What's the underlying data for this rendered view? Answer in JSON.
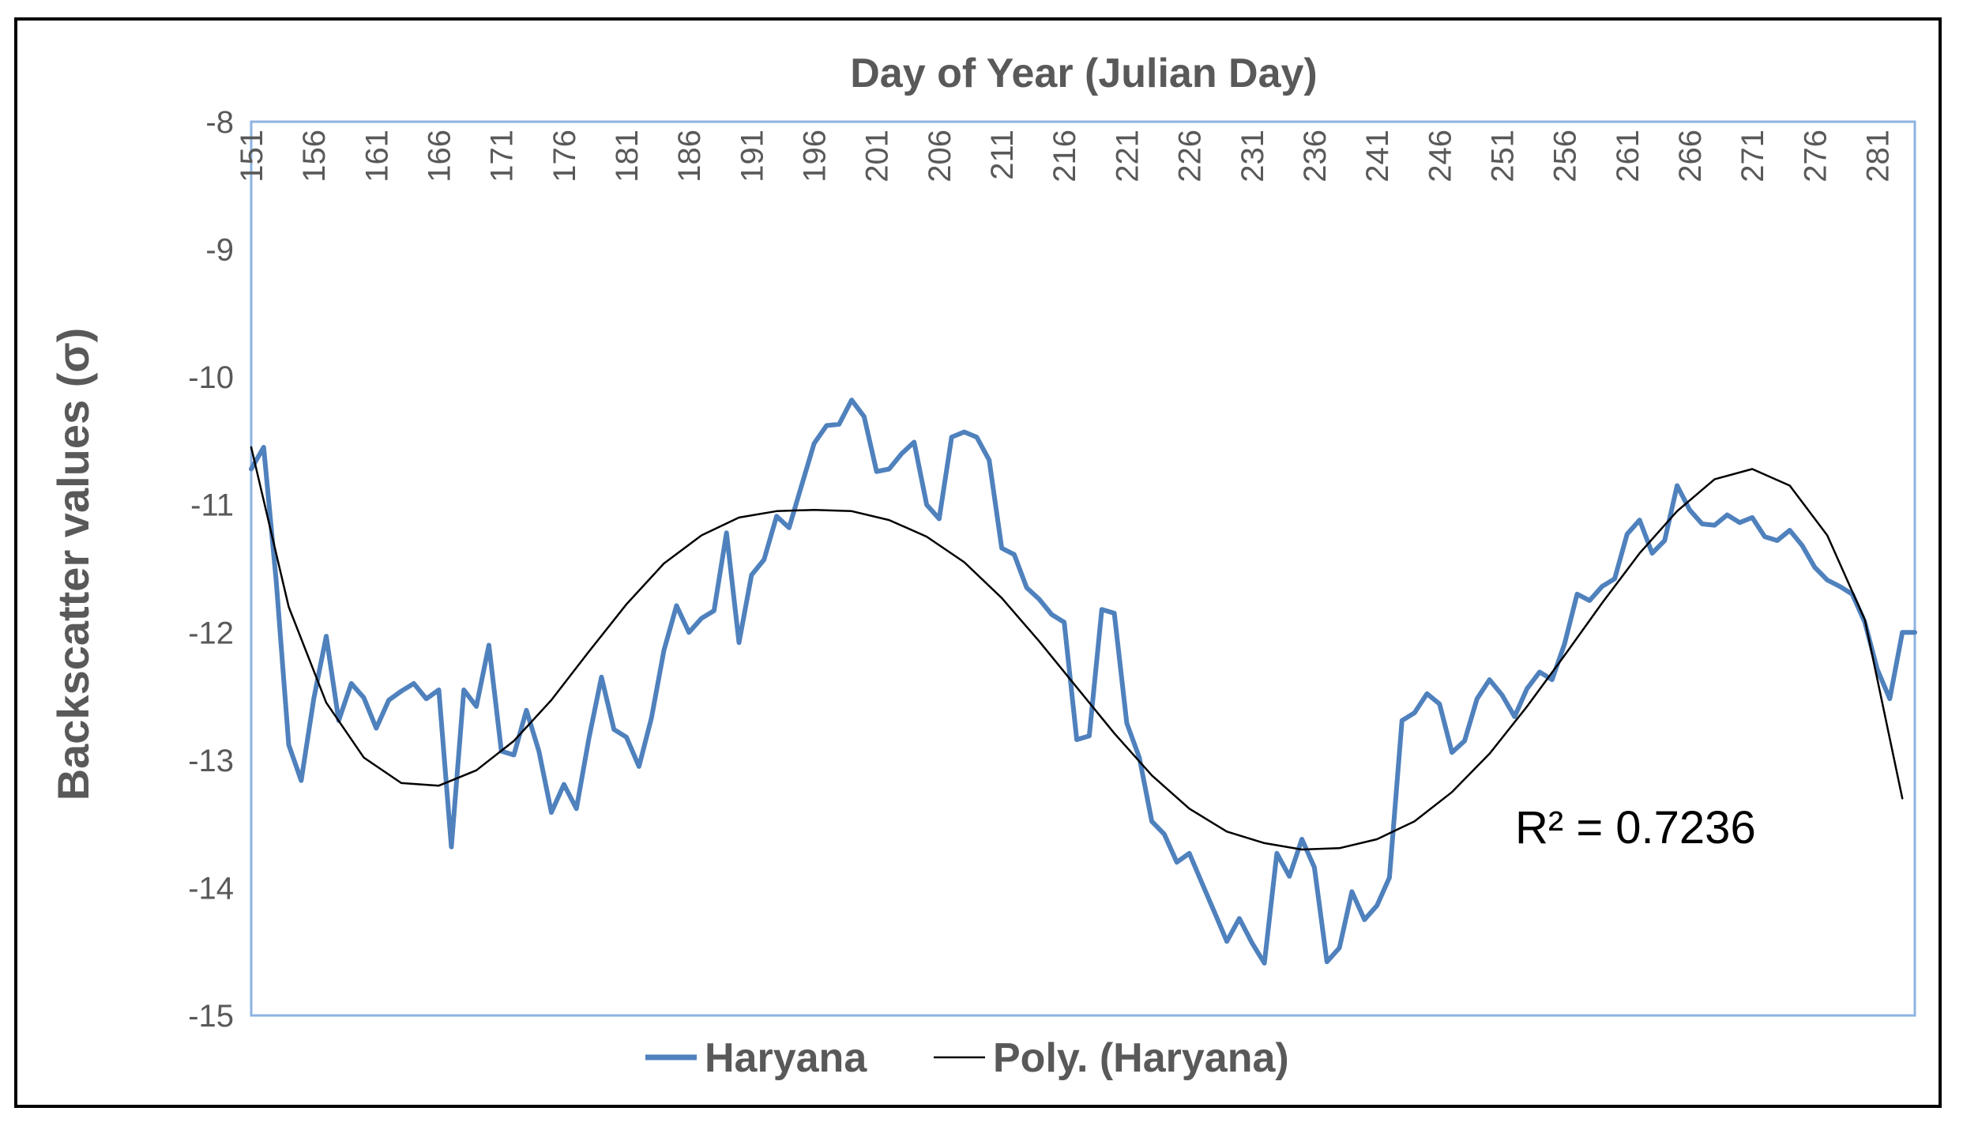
{
  "chart_data": {
    "type": "line",
    "title": "",
    "xlabel": "Day of Year (Julian Day)",
    "ylabel": "Backscatter values (σ)",
    "x_axis_position": "top",
    "ylim": [
      -15,
      -8
    ],
    "xlim": [
      151,
      284
    ],
    "x_ticks": [
      151,
      156,
      161,
      166,
      171,
      176,
      181,
      186,
      191,
      196,
      201,
      206,
      211,
      216,
      221,
      226,
      231,
      236,
      241,
      246,
      251,
      256,
      261,
      266,
      271,
      276,
      281
    ],
    "y_ticks": [
      -8,
      -9,
      -10,
      -11,
      -12,
      -13,
      -14,
      -15
    ],
    "grid": false,
    "legend_position": "bottom",
    "annotation": "R² = 0.7236",
    "series": [
      {
        "name": "Haryana",
        "color": "#4f81bd",
        "x": [
          151,
          152,
          153,
          154,
          155,
          156,
          157,
          158,
          159,
          160,
          161,
          162,
          163,
          164,
          165,
          166,
          167,
          168,
          169,
          170,
          171,
          172,
          173,
          174,
          175,
          176,
          177,
          178,
          179,
          180,
          181,
          182,
          183,
          184,
          185,
          186,
          187,
          188,
          189,
          190,
          191,
          192,
          193,
          194,
          195,
          196,
          197,
          198,
          199,
          200,
          201,
          202,
          203,
          204,
          205,
          206,
          207,
          208,
          209,
          210,
          211,
          212,
          213,
          214,
          215,
          216,
          217,
          218,
          219,
          220,
          221,
          222,
          223,
          224,
          225,
          226,
          227,
          228,
          229,
          230,
          231,
          232,
          233,
          234,
          235,
          236,
          237,
          238,
          239,
          240,
          241,
          242,
          243,
          244,
          245,
          246,
          247,
          248,
          249,
          250,
          251,
          252,
          253,
          254,
          255,
          256,
          257,
          258,
          259,
          260,
          261,
          262,
          263,
          264,
          265,
          266,
          267,
          268,
          269,
          270,
          271,
          272,
          273,
          274,
          275,
          276,
          277,
          278,
          279,
          280,
          281,
          282,
          283,
          284
        ],
        "values": [
          -10.72,
          -10.55,
          -11.6,
          -12.88,
          -13.16,
          -12.52,
          -12.03,
          -12.69,
          -12.4,
          -12.51,
          -12.75,
          -12.53,
          -12.46,
          -12.4,
          -12.52,
          -12.45,
          -13.68,
          -12.45,
          -12.58,
          -12.1,
          -12.93,
          -12.96,
          -12.61,
          -12.93,
          -13.41,
          -13.19,
          -13.38,
          -12.83,
          -12.35,
          -12.76,
          -12.82,
          -13.05,
          -12.67,
          -12.14,
          -11.79,
          -12.0,
          -11.89,
          -11.83,
          -11.22,
          -12.08,
          -11.55,
          -11.43,
          -11.09,
          -11.18,
          -10.85,
          -10.52,
          -10.38,
          -10.37,
          -10.18,
          -10.31,
          -10.74,
          -10.72,
          -10.6,
          -10.51,
          -11.0,
          -11.11,
          -10.47,
          -10.43,
          -10.47,
          -10.65,
          -11.34,
          -11.39,
          -11.65,
          -11.74,
          -11.86,
          -11.92,
          -12.84,
          -12.81,
          -11.82,
          -11.85,
          -12.71,
          -12.98,
          -13.48,
          -13.58,
          -13.8,
          -13.73,
          -13.96,
          -14.19,
          -14.42,
          -14.24,
          -14.43,
          -14.59,
          -13.73,
          -13.91,
          -13.62,
          -13.84,
          -14.58,
          -14.47,
          -14.03,
          -14.25,
          -14.14,
          -13.92,
          -12.69,
          -12.63,
          -12.48,
          -12.56,
          -12.94,
          -12.85,
          -12.52,
          -12.37,
          -12.49,
          -12.66,
          -12.44,
          -12.31,
          -12.37,
          -12.09,
          -11.7,
          -11.75,
          -11.64,
          -11.58,
          -11.23,
          -11.12,
          -11.38,
          -11.28,
          -10.85,
          -11.04,
          -11.15,
          -11.16,
          -11.08,
          -11.14,
          -11.1,
          -11.25,
          -11.28,
          -11.2,
          -11.32,
          -11.49,
          -11.59,
          -11.64,
          -11.7,
          -11.92,
          -12.29,
          -12.52,
          -12.0,
          -12.0
        ]
      },
      {
        "name": "Poly. (Haryana)",
        "color": "#000000",
        "x": [
          151,
          154,
          157,
          160,
          163,
          166,
          169,
          172,
          175,
          178,
          181,
          184,
          187,
          190,
          193,
          196,
          199,
          202,
          205,
          208,
          211,
          214,
          217,
          220,
          223,
          226,
          229,
          232,
          235,
          238,
          241,
          244,
          247,
          250,
          253,
          256,
          259,
          262,
          265,
          268,
          271,
          274,
          277,
          280,
          283
        ],
        "values": [
          -10.55,
          -11.8,
          -12.55,
          -12.98,
          -13.18,
          -13.2,
          -13.08,
          -12.85,
          -12.53,
          -12.15,
          -11.78,
          -11.46,
          -11.24,
          -11.1,
          -11.05,
          -11.04,
          -11.05,
          -11.12,
          -11.25,
          -11.45,
          -11.73,
          -12.07,
          -12.43,
          -12.79,
          -13.12,
          -13.38,
          -13.56,
          -13.65,
          -13.7,
          -13.69,
          -13.62,
          -13.48,
          -13.25,
          -12.95,
          -12.58,
          -12.18,
          -11.77,
          -11.38,
          -11.05,
          -10.8,
          -10.72,
          -10.85,
          -11.24,
          -11.9,
          -13.3
        ]
      }
    ]
  }
}
